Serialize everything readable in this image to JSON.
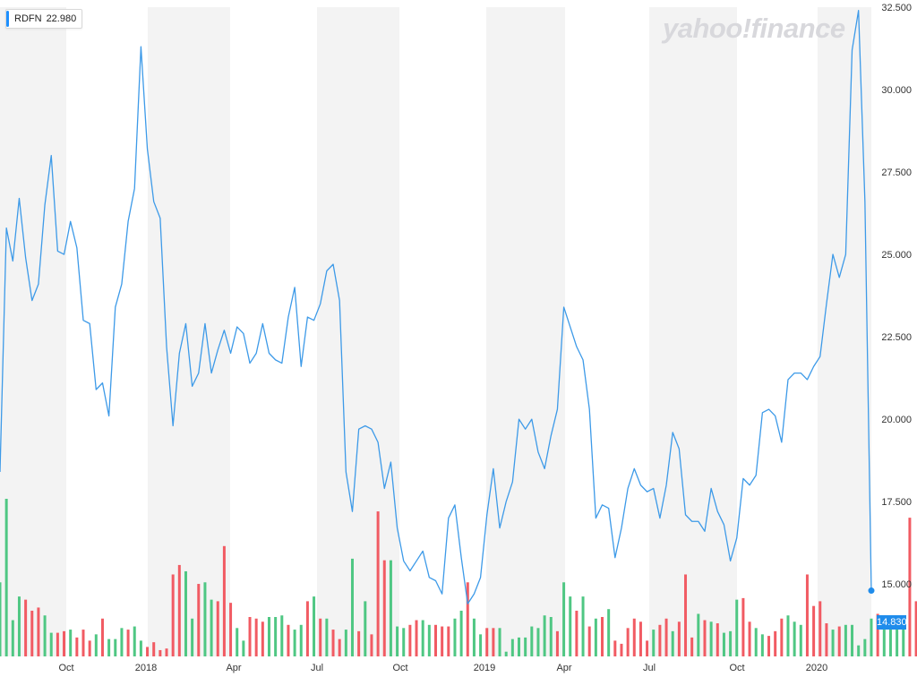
{
  "legend": {
    "symbol": "RDFN",
    "value": "22.980"
  },
  "watermark": "yahoo!finance",
  "last_price_label": "14.830",
  "colors": {
    "line": "#3d9ae8",
    "up_volume": "#4fc783",
    "down_volume": "#f15b63",
    "band": "#f3f3f3",
    "last_price": "#1f8ceb"
  },
  "chart_data": {
    "type": "line",
    "title": "",
    "xlabel": "",
    "ylabel": "",
    "ylim": [
      14.0,
      32.5
    ],
    "y_ticks": [
      "15.000",
      "17.500",
      "20.000",
      "22.500",
      "25.000",
      "27.500",
      "30.000",
      "32.500"
    ],
    "x_ticks": [
      "Oct",
      "2018",
      "Apr",
      "Jul",
      "Oct",
      "2019",
      "Apr",
      "Jul",
      "Oct",
      "2020"
    ],
    "grid": false,
    "legend": "top-left",
    "series": [
      {
        "values": [
          18.4,
          25.8,
          24.8,
          26.7,
          24.9,
          23.6,
          24.1,
          26.5,
          28.0,
          25.1,
          25.0,
          26.0,
          25.2,
          23.0,
          22.9,
          20.9,
          21.1,
          20.1,
          23.4,
          24.1,
          26.0,
          27.0,
          31.3,
          28.2,
          26.6,
          26.1,
          22.2,
          19.8,
          22.0,
          22.9,
          21.0,
          21.4,
          22.9,
          21.4,
          22.1,
          22.7,
          22.0,
          22.8,
          22.6,
          21.7,
          22.0,
          22.9,
          22.0,
          21.8,
          21.7,
          23.1,
          24.0,
          21.6,
          23.1,
          23.0,
          23.5,
          24.5,
          24.7,
          23.6,
          18.4,
          17.2,
          19.7,
          19.8,
          19.7,
          19.3,
          17.9,
          18.7,
          16.7,
          15.7,
          15.4,
          15.7,
          16.0,
          15.2,
          15.1,
          14.7,
          17.0,
          17.4,
          15.8,
          14.4,
          14.7,
          15.2,
          17.1,
          18.5,
          16.7,
          17.5,
          18.1,
          20.0,
          19.7,
          20.0,
          19.0,
          18.5,
          19.5,
          20.3,
          23.4,
          22.8,
          22.2,
          21.8,
          20.3,
          17.0,
          17.4,
          17.3,
          15.8,
          16.7,
          17.9,
          18.5,
          18.0,
          17.8,
          17.9,
          17.0,
          18.0,
          19.6,
          19.1,
          17.1,
          16.9,
          16.9,
          16.6,
          17.9,
          17.2,
          16.8,
          15.7,
          16.4,
          18.2,
          18.0,
          18.3,
          20.2,
          20.3,
          20.1,
          19.3,
          21.2,
          21.4,
          21.4,
          21.2,
          21.6,
          21.9,
          23.5,
          25.0,
          24.3,
          25.0,
          31.2,
          32.4,
          26.6,
          14.8
        ]
      }
    ],
    "volume": [
      {
        "value": 47,
        "up": true
      },
      {
        "value": 100,
        "up": true
      },
      {
        "value": 23,
        "up": true
      },
      {
        "value": 38,
        "up": true
      },
      {
        "value": 36,
        "up": false
      },
      {
        "value": 29,
        "up": false
      },
      {
        "value": 31,
        "up": false
      },
      {
        "value": 26,
        "up": true
      },
      {
        "value": 15,
        "up": true
      },
      {
        "value": 15,
        "up": false
      },
      {
        "value": 16,
        "up": false
      },
      {
        "value": 17,
        "up": true
      },
      {
        "value": 12,
        "up": false
      },
      {
        "value": 17,
        "up": false
      },
      {
        "value": 10,
        "up": false
      },
      {
        "value": 14,
        "up": true
      },
      {
        "value": 24,
        "up": false
      },
      {
        "value": 11,
        "up": true
      },
      {
        "value": 11,
        "up": true
      },
      {
        "value": 18,
        "up": true
      },
      {
        "value": 17,
        "up": false
      },
      {
        "value": 19,
        "up": true
      },
      {
        "value": 10,
        "up": true
      },
      {
        "value": 6,
        "up": false
      },
      {
        "value": 9,
        "up": false
      },
      {
        "value": 4,
        "up": false
      },
      {
        "value": 5,
        "up": false
      },
      {
        "value": 52,
        "up": false
      },
      {
        "value": 58,
        "up": false
      },
      {
        "value": 54,
        "up": true
      },
      {
        "value": 24,
        "up": true
      },
      {
        "value": 46,
        "up": false
      },
      {
        "value": 47,
        "up": true
      },
      {
        "value": 36,
        "up": true
      },
      {
        "value": 35,
        "up": false
      },
      {
        "value": 70,
        "up": false
      },
      {
        "value": 34,
        "up": false
      },
      {
        "value": 18,
        "up": true
      },
      {
        "value": 10,
        "up": true
      },
      {
        "value": 25,
        "up": false
      },
      {
        "value": 24,
        "up": false
      },
      {
        "value": 22,
        "up": false
      },
      {
        "value": 25,
        "up": true
      },
      {
        "value": 25,
        "up": true
      },
      {
        "value": 26,
        "up": true
      },
      {
        "value": 20,
        "up": false
      },
      {
        "value": 17,
        "up": true
      },
      {
        "value": 20,
        "up": true
      },
      {
        "value": 35,
        "up": false
      },
      {
        "value": 38,
        "up": true
      },
      {
        "value": 24,
        "up": false
      },
      {
        "value": 24,
        "up": true
      },
      {
        "value": 17,
        "up": false
      },
      {
        "value": 11,
        "up": false
      },
      {
        "value": 17,
        "up": true
      },
      {
        "value": 62,
        "up": true
      },
      {
        "value": 16,
        "up": false
      },
      {
        "value": 35,
        "up": true
      },
      {
        "value": 14,
        "up": false
      },
      {
        "value": 92,
        "up": false
      },
      {
        "value": 61,
        "up": false
      },
      {
        "value": 61,
        "up": true
      },
      {
        "value": 19,
        "up": true
      },
      {
        "value": 18,
        "up": true
      },
      {
        "value": 20,
        "up": false
      },
      {
        "value": 23,
        "up": false
      },
      {
        "value": 23,
        "up": true
      },
      {
        "value": 20,
        "up": true
      },
      {
        "value": 20,
        "up": false
      },
      {
        "value": 19,
        "up": false
      },
      {
        "value": 19,
        "up": false
      },
      {
        "value": 24,
        "up": true
      },
      {
        "value": 29,
        "up": true
      },
      {
        "value": 47,
        "up": false
      },
      {
        "value": 24,
        "up": true
      },
      {
        "value": 14,
        "up": true
      },
      {
        "value": 18,
        "up": false
      },
      {
        "value": 18,
        "up": false
      },
      {
        "value": 18,
        "up": true
      },
      {
        "value": 3,
        "up": true
      },
      {
        "value": 11,
        "up": true
      },
      {
        "value": 12,
        "up": true
      },
      {
        "value": 12,
        "up": true
      },
      {
        "value": 19,
        "up": true
      },
      {
        "value": 18,
        "up": true
      },
      {
        "value": 26,
        "up": true
      },
      {
        "value": 25,
        "up": true
      },
      {
        "value": 16,
        "up": false
      },
      {
        "value": 47,
        "up": true
      },
      {
        "value": 38,
        "up": true
      },
      {
        "value": 29,
        "up": false
      },
      {
        "value": 38,
        "up": true
      },
      {
        "value": 19,
        "up": false
      },
      {
        "value": 24,
        "up": true
      },
      {
        "value": 25,
        "up": false
      },
      {
        "value": 30,
        "up": true
      },
      {
        "value": 10,
        "up": false
      },
      {
        "value": 8,
        "up": false
      },
      {
        "value": 18,
        "up": false
      },
      {
        "value": 24,
        "up": false
      },
      {
        "value": 22,
        "up": false
      },
      {
        "value": 10,
        "up": false
      },
      {
        "value": 17,
        "up": true
      },
      {
        "value": 20,
        "up": false
      },
      {
        "value": 24,
        "up": false
      },
      {
        "value": 16,
        "up": true
      },
      {
        "value": 22,
        "up": false
      },
      {
        "value": 52,
        "up": false
      },
      {
        "value": 12,
        "up": false
      },
      {
        "value": 27,
        "up": true
      },
      {
        "value": 23,
        "up": false
      },
      {
        "value": 22,
        "up": true
      },
      {
        "value": 21,
        "up": false
      },
      {
        "value": 15,
        "up": true
      },
      {
        "value": 16,
        "up": true
      },
      {
        "value": 36,
        "up": true
      },
      {
        "value": 37,
        "up": false
      },
      {
        "value": 22,
        "up": false
      },
      {
        "value": 18,
        "up": true
      },
      {
        "value": 14,
        "up": true
      },
      {
        "value": 13,
        "up": false
      },
      {
        "value": 16,
        "up": false
      },
      {
        "value": 24,
        "up": false
      },
      {
        "value": 26,
        "up": true
      },
      {
        "value": 22,
        "up": true
      },
      {
        "value": 20,
        "up": true
      },
      {
        "value": 52,
        "up": false
      },
      {
        "value": 32,
        "up": false
      },
      {
        "value": 35,
        "up": false
      },
      {
        "value": 21,
        "up": false
      },
      {
        "value": 17,
        "up": true
      },
      {
        "value": 19,
        "up": false
      },
      {
        "value": 20,
        "up": true
      },
      {
        "value": 20,
        "up": true
      },
      {
        "value": 7,
        "up": true
      },
      {
        "value": 11,
        "up": true
      },
      {
        "value": 24,
        "up": true
      },
      {
        "value": 27,
        "up": false
      },
      {
        "value": 22,
        "up": true
      },
      {
        "value": 24,
        "up": true
      },
      {
        "value": 25,
        "up": true
      },
      {
        "value": 18,
        "up": true
      },
      {
        "value": 88,
        "up": false
      },
      {
        "value": 35,
        "up": false
      },
      {
        "value": 55,
        "up": false
      }
    ]
  }
}
